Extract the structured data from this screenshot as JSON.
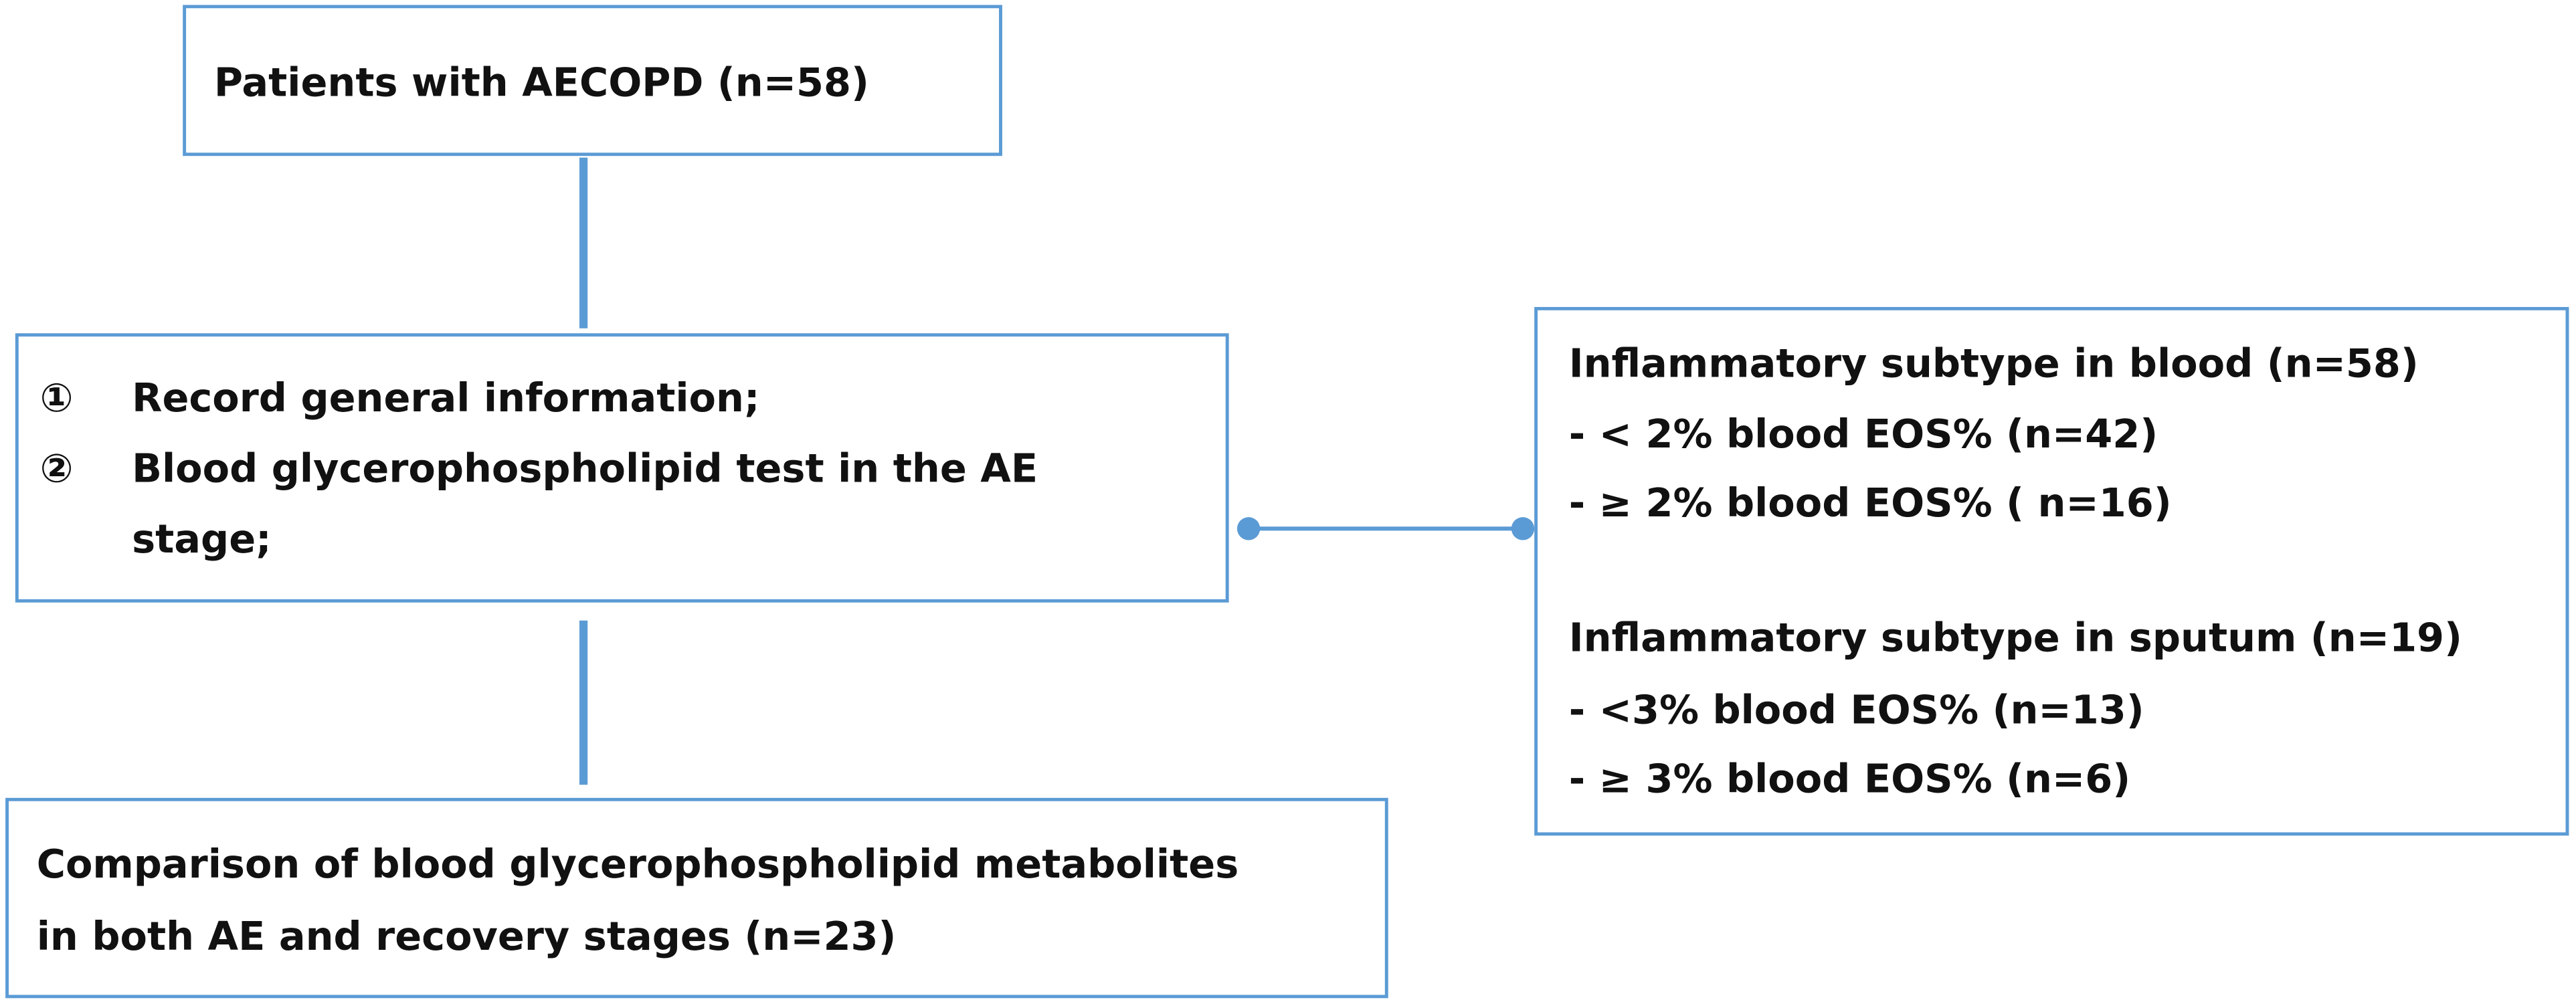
{
  "nodes": [
    {
      "label": "Patients with AECOPD (n=58)"
    },
    {
      "items": [
        {
          "marker": "①",
          "lines": [
            "Record general information;"
          ]
        },
        {
          "marker": "②",
          "lines": [
            "Blood glycerophospholipid test in the AE",
            "stage;"
          ]
        }
      ]
    },
    {
      "lines": [
        "Comparison of blood glycerophospholipid metabolites",
        "in both AE and recovery stages (n=23)"
      ]
    },
    {
      "groups": [
        {
          "heading": "Inflammatory subtype in blood (n=58)",
          "lines": [
            "- < 2% blood EOS% (n=42)",
            "-  ≥ 2% blood EOS% ( n=16)"
          ]
        },
        {
          "heading": "Inflammatory subtype in sputum (n=19)",
          "lines": [
            "- <3% blood EOS% (n=13)",
            "- ≥ 3% blood EOS% (n=6)"
          ]
        }
      ]
    }
  ]
}
